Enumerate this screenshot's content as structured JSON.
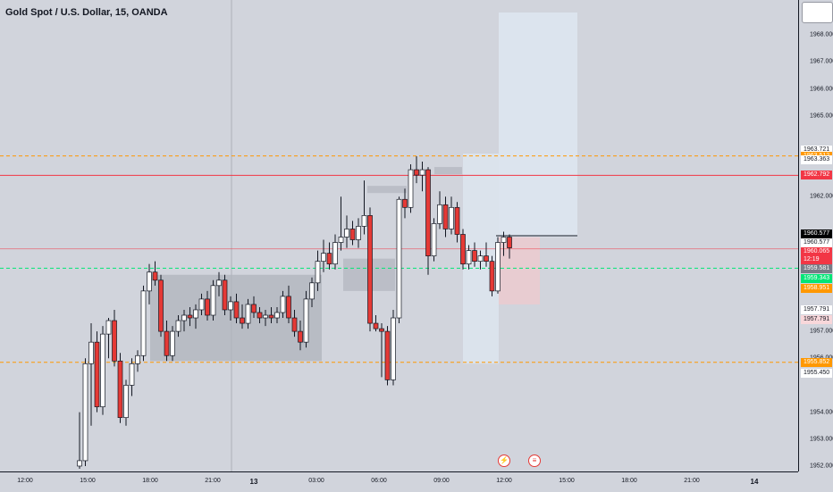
{
  "title": "Gold Spot / U.S. Dollar, 15, OANDA",
  "colors": {
    "background": "#d1d4dc",
    "up_candle": "#ffffff",
    "down_candle": "#e53935",
    "wick": "#131722",
    "green_line": "#00e676",
    "red_line": "#e53935",
    "orange_dashed": "#ff9800",
    "zone_gray": "#b2b5be",
    "zone_blue": "#e3eefa",
    "zone_red": "#f2c9cc"
  },
  "x_ticks": [
    {
      "label": "12:00",
      "bold": false
    },
    {
      "label": "15:00",
      "bold": false
    },
    {
      "label": "18:00",
      "bold": false
    },
    {
      "label": "21:00",
      "bold": false
    },
    {
      "label": "13",
      "bold": true
    },
    {
      "label": "03:00",
      "bold": false
    },
    {
      "label": "06:00",
      "bold": false
    },
    {
      "label": "09:00",
      "bold": false
    },
    {
      "label": "12:00",
      "bold": false
    },
    {
      "label": "15:00",
      "bold": false
    },
    {
      "label": "18:00",
      "bold": false
    },
    {
      "label": "21:00",
      "bold": false
    },
    {
      "label": "14",
      "bold": true
    }
  ],
  "y_ticks": [
    "1968.000",
    "1967.000",
    "1966.000",
    "1965.000",
    "1962.000",
    "1957.000",
    "1956.000",
    "1954.000",
    "1953.000",
    "1952.000"
  ],
  "price_labels": [
    {
      "text": "1963.721",
      "bg": "#ffffff",
      "fg": "#131722",
      "price": 1963.721
    },
    {
      "text": "1963.512",
      "bg": "#ff9800",
      "fg": "#ffffff",
      "price": 1963.512
    },
    {
      "text": "1963.363",
      "bg": "#ffffff",
      "fg": "#131722",
      "price": 1963.363
    },
    {
      "text": "1962.792",
      "bg": "#f23645",
      "fg": "#ffffff",
      "price": 1962.792
    },
    {
      "text": "1960.577",
      "bg": "#000000",
      "fg": "#ffffff",
      "price": 1960.63
    },
    {
      "text": "1960.577",
      "bg": "#ffffff",
      "fg": "#131722",
      "price": 1960.28
    },
    {
      "text": "1960.065",
      "bg": "#f23645",
      "fg": "#ffffff",
      "price": 1959.94
    },
    {
      "text": "12:19",
      "bg": "#f23645",
      "fg": "#ffffff",
      "price": 1959.64
    },
    {
      "text": "1959.581",
      "bg": "#787b86",
      "fg": "#ffffff",
      "price": 1959.33
    },
    {
      "text": "1959.343",
      "bg": "#00e676",
      "fg": "#ffffff",
      "price": 1958.97
    },
    {
      "text": "1958.951",
      "bg": "#ff9800",
      "fg": "#ffffff",
      "price": 1958.58
    },
    {
      "text": "1957.791",
      "bg": "#ffffff",
      "fg": "#131722",
      "price": 1957.791
    },
    {
      "text": "1957.791",
      "bg": "#f8d7da",
      "fg": "#131722",
      "price": 1957.43
    },
    {
      "text": "1955.852",
      "bg": "#ff9800",
      "fg": "#ffffff",
      "price": 1955.852
    },
    {
      "text": "1955.450",
      "bg": "#ffffff",
      "fg": "#131722",
      "price": 1955.45
    }
  ],
  "event_icons": [
    "⚡",
    "≡"
  ],
  "chart_data": {
    "type": "candlestick",
    "title": "Gold Spot / U.S. Dollar, 15, OANDA",
    "ylim": [
      1951.8,
      1969.3
    ],
    "horizontal_lines": [
      {
        "price": 1963.512,
        "color": "#ff9800",
        "style": "dashed"
      },
      {
        "price": 1962.792,
        "color": "#f23645",
        "style": "solid"
      },
      {
        "price": 1960.065,
        "color": "#f23645",
        "style": "solid-faint"
      },
      {
        "price": 1959.343,
        "color": "#00e676",
        "style": "dashed"
      },
      {
        "price": 1955.852,
        "color": "#ff9800",
        "style": "dashed"
      }
    ],
    "candles": [
      {
        "o": 1952.0,
        "h": 1954.0,
        "l": 1951.9,
        "c": 1952.2
      },
      {
        "o": 1952.2,
        "h": 1956.0,
        "l": 1952.0,
        "c": 1955.8
      },
      {
        "o": 1955.8,
        "h": 1957.3,
        "l": 1953.5,
        "c": 1956.6
      },
      {
        "o": 1956.6,
        "h": 1957.0,
        "l": 1954.0,
        "c": 1954.2
      },
      {
        "o": 1954.2,
        "h": 1957.2,
        "l": 1953.9,
        "c": 1956.9
      },
      {
        "o": 1956.9,
        "h": 1957.5,
        "l": 1956.0,
        "c": 1957.4
      },
      {
        "o": 1957.4,
        "h": 1957.8,
        "l": 1955.7,
        "c": 1955.9
      },
      {
        "o": 1955.9,
        "h": 1956.2,
        "l": 1953.6,
        "c": 1953.8
      },
      {
        "o": 1953.8,
        "h": 1955.2,
        "l": 1953.5,
        "c": 1955.0
      },
      {
        "o": 1955.0,
        "h": 1956.0,
        "l": 1954.6,
        "c": 1955.8
      },
      {
        "o": 1955.8,
        "h": 1956.3,
        "l": 1955.5,
        "c": 1956.1
      },
      {
        "o": 1956.1,
        "h": 1958.7,
        "l": 1955.9,
        "c": 1958.5
      },
      {
        "o": 1958.5,
        "h": 1959.5,
        "l": 1958.0,
        "c": 1959.2
      },
      {
        "o": 1959.2,
        "h": 1959.6,
        "l": 1958.7,
        "c": 1958.9
      },
      {
        "o": 1958.9,
        "h": 1959.1,
        "l": 1956.8,
        "c": 1957.0
      },
      {
        "o": 1957.0,
        "h": 1957.4,
        "l": 1955.9,
        "c": 1956.1
      },
      {
        "o": 1956.1,
        "h": 1957.2,
        "l": 1955.9,
        "c": 1957.0
      },
      {
        "o": 1957.0,
        "h": 1957.6,
        "l": 1956.8,
        "c": 1957.4
      },
      {
        "o": 1957.4,
        "h": 1957.8,
        "l": 1957.0,
        "c": 1957.6
      },
      {
        "o": 1957.6,
        "h": 1957.9,
        "l": 1957.2,
        "c": 1957.5
      },
      {
        "o": 1957.5,
        "h": 1958.0,
        "l": 1957.1,
        "c": 1957.8
      },
      {
        "o": 1957.8,
        "h": 1958.4,
        "l": 1957.6,
        "c": 1958.2
      },
      {
        "o": 1958.2,
        "h": 1958.5,
        "l": 1957.4,
        "c": 1957.6
      },
      {
        "o": 1957.6,
        "h": 1958.9,
        "l": 1957.4,
        "c": 1958.7
      },
      {
        "o": 1958.7,
        "h": 1959.2,
        "l": 1958.3,
        "c": 1958.9
      },
      {
        "o": 1958.9,
        "h": 1959.1,
        "l": 1957.6,
        "c": 1957.8
      },
      {
        "o": 1957.8,
        "h": 1958.3,
        "l": 1957.4,
        "c": 1958.1
      },
      {
        "o": 1958.1,
        "h": 1958.4,
        "l": 1957.3,
        "c": 1957.5
      },
      {
        "o": 1957.5,
        "h": 1958.0,
        "l": 1957.1,
        "c": 1957.3
      },
      {
        "o": 1957.3,
        "h": 1958.2,
        "l": 1957.1,
        "c": 1958.0
      },
      {
        "o": 1958.0,
        "h": 1958.3,
        "l": 1957.5,
        "c": 1957.7
      },
      {
        "o": 1957.7,
        "h": 1957.9,
        "l": 1957.3,
        "c": 1957.5
      },
      {
        "o": 1957.5,
        "h": 1957.8,
        "l": 1957.2,
        "c": 1957.6
      },
      {
        "o": 1957.6,
        "h": 1957.9,
        "l": 1957.3,
        "c": 1957.5
      },
      {
        "o": 1957.5,
        "h": 1957.9,
        "l": 1957.3,
        "c": 1957.7
      },
      {
        "o": 1957.7,
        "h": 1958.5,
        "l": 1957.5,
        "c": 1958.3
      },
      {
        "o": 1958.3,
        "h": 1958.7,
        "l": 1957.3,
        "c": 1957.5
      },
      {
        "o": 1957.5,
        "h": 1957.8,
        "l": 1956.8,
        "c": 1957.0
      },
      {
        "o": 1957.0,
        "h": 1957.4,
        "l": 1956.3,
        "c": 1956.6
      },
      {
        "o": 1956.6,
        "h": 1958.5,
        "l": 1956.4,
        "c": 1958.2
      },
      {
        "o": 1958.2,
        "h": 1959.0,
        "l": 1957.9,
        "c": 1958.8
      },
      {
        "o": 1958.8,
        "h": 1960.0,
        "l": 1958.5,
        "c": 1959.6
      },
      {
        "o": 1959.6,
        "h": 1960.4,
        "l": 1959.2,
        "c": 1959.9
      },
      {
        "o": 1959.9,
        "h": 1960.3,
        "l": 1959.3,
        "c": 1959.5
      },
      {
        "o": 1959.5,
        "h": 1960.6,
        "l": 1959.3,
        "c": 1960.3
      },
      {
        "o": 1960.3,
        "h": 1962.0,
        "l": 1960.0,
        "c": 1960.5
      },
      {
        "o": 1960.5,
        "h": 1961.3,
        "l": 1960.1,
        "c": 1960.8
      },
      {
        "o": 1960.8,
        "h": 1961.1,
        "l": 1960.2,
        "c": 1960.4
      },
      {
        "o": 1960.4,
        "h": 1961.2,
        "l": 1960.1,
        "c": 1960.9
      },
      {
        "o": 1960.9,
        "h": 1962.6,
        "l": 1960.6,
        "c": 1961.3
      },
      {
        "o": 1961.3,
        "h": 1961.6,
        "l": 1957.0,
        "c": 1957.3
      },
      {
        "o": 1957.3,
        "h": 1957.6,
        "l": 1957.0,
        "c": 1957.1
      },
      {
        "o": 1957.1,
        "h": 1957.3,
        "l": 1955.3,
        "c": 1957.0
      },
      {
        "o": 1957.0,
        "h": 1957.2,
        "l": 1955.0,
        "c": 1955.2
      },
      {
        "o": 1955.2,
        "h": 1957.8,
        "l": 1955.0,
        "c": 1957.5
      },
      {
        "o": 1957.5,
        "h": 1962.0,
        "l": 1957.3,
        "c": 1961.9
      },
      {
        "o": 1961.9,
        "h": 1962.3,
        "l": 1961.2,
        "c": 1961.6
      },
      {
        "o": 1961.6,
        "h": 1963.2,
        "l": 1961.4,
        "c": 1963.0
      },
      {
        "o": 1963.0,
        "h": 1963.5,
        "l": 1962.5,
        "c": 1962.8
      },
      {
        "o": 1962.8,
        "h": 1963.3,
        "l": 1962.2,
        "c": 1963.0
      },
      {
        "o": 1963.0,
        "h": 1963.1,
        "l": 1959.1,
        "c": 1959.8
      },
      {
        "o": 1959.8,
        "h": 1961.2,
        "l": 1959.6,
        "c": 1961.0
      },
      {
        "o": 1961.0,
        "h": 1962.2,
        "l": 1960.8,
        "c": 1961.7
      },
      {
        "o": 1961.7,
        "h": 1962.0,
        "l": 1960.5,
        "c": 1960.8
      },
      {
        "o": 1960.8,
        "h": 1962.0,
        "l": 1960.6,
        "c": 1961.6
      },
      {
        "o": 1961.6,
        "h": 1961.8,
        "l": 1960.3,
        "c": 1960.6
      },
      {
        "o": 1960.6,
        "h": 1960.8,
        "l": 1959.3,
        "c": 1959.5
      },
      {
        "o": 1959.5,
        "h": 1960.2,
        "l": 1959.3,
        "c": 1960.0
      },
      {
        "o": 1960.0,
        "h": 1960.3,
        "l": 1959.4,
        "c": 1959.6
      },
      {
        "o": 1959.6,
        "h": 1960.0,
        "l": 1959.3,
        "c": 1959.8
      },
      {
        "o": 1959.8,
        "h": 1960.3,
        "l": 1959.4,
        "c": 1959.6
      },
      {
        "o": 1959.6,
        "h": 1959.8,
        "l": 1958.3,
        "c": 1958.5
      },
      {
        "o": 1958.5,
        "h": 1960.5,
        "l": 1958.4,
        "c": 1960.3
      },
      {
        "o": 1960.3,
        "h": 1960.7,
        "l": 1959.8,
        "c": 1960.5
      },
      {
        "o": 1960.5,
        "h": 1960.6,
        "l": 1959.7,
        "c": 1960.1
      }
    ]
  }
}
